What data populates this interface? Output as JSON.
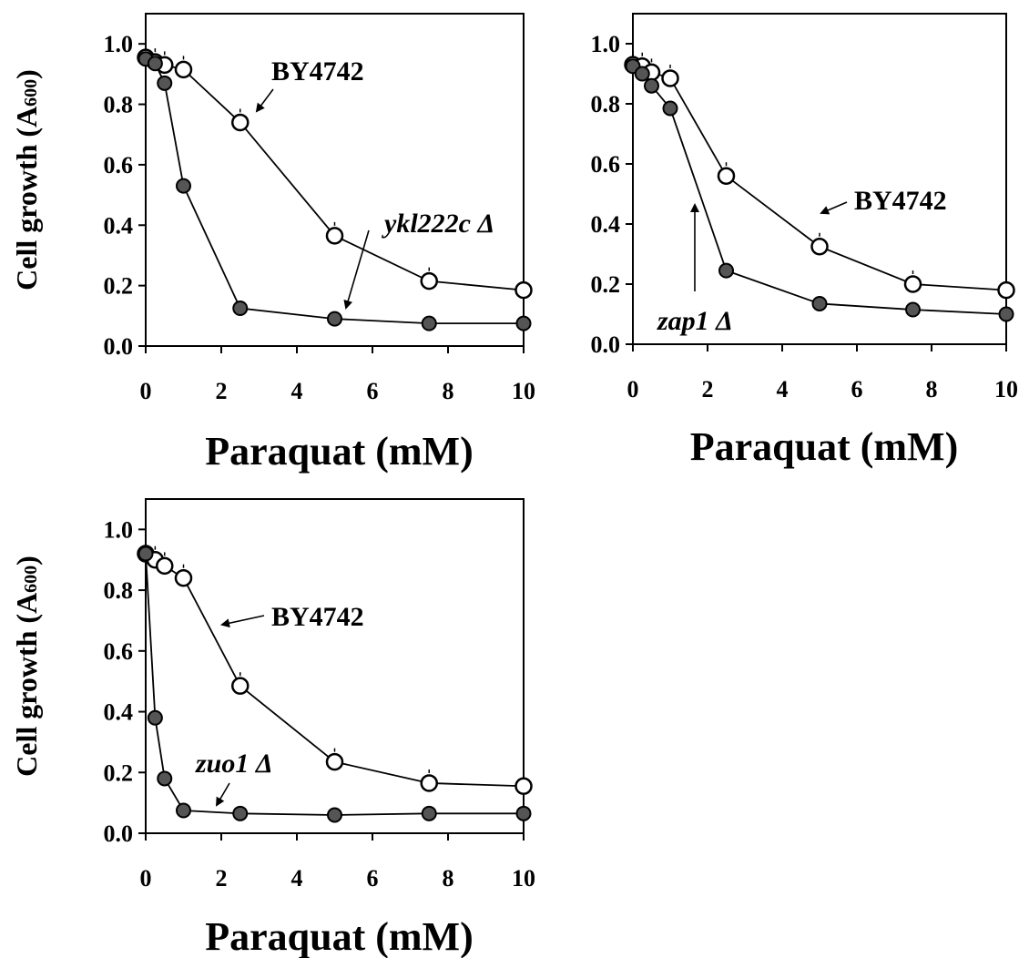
{
  "chart_data": [
    {
      "type": "line",
      "panel": "top-left",
      "xlabel": "Paraquat (mM)",
      "ylabel": "Cell growth (A",
      "ylabel_sub": "600",
      "ylabel_close": ")",
      "xlim": [
        0,
        10
      ],
      "ylim": [
        0,
        1.1
      ],
      "xticks": [
        0,
        2,
        4,
        6,
        8,
        10
      ],
      "yticks": [
        "0.0",
        "0.2",
        "0.4",
        "0.6",
        "0.8",
        "1.0"
      ],
      "series": [
        {
          "name": "BY4742",
          "style": "open",
          "x": [
            0,
            0.25,
            0.5,
            1,
            2.5,
            5,
            7.5,
            10
          ],
          "y": [
            0.955,
            0.94,
            0.93,
            0.915,
            0.74,
            0.365,
            0.215,
            0.185
          ]
        },
        {
          "name": "ykl222c Δ",
          "style": "filled",
          "x": [
            0,
            0.25,
            0.5,
            1,
            2.5,
            5,
            7.5,
            10
          ],
          "y": [
            0.95,
            0.935,
            0.87,
            0.53,
            0.125,
            0.09,
            0.075,
            0.075
          ]
        }
      ],
      "annotations": [
        {
          "text": "BY4742",
          "italic": false
        },
        {
          "text": "ykl222c Δ",
          "italic": true
        }
      ]
    },
    {
      "type": "line",
      "panel": "top-right",
      "xlabel": "Paraquat (mM)",
      "ylabel": "",
      "xlim": [
        0,
        10
      ],
      "ylim": [
        0,
        1.1
      ],
      "xticks": [
        0,
        2,
        4,
        6,
        8,
        10
      ],
      "yticks": [
        "0.0",
        "0.2",
        "0.4",
        "0.6",
        "0.8",
        "1.0"
      ],
      "series": [
        {
          "name": "BY4742",
          "style": "open",
          "x": [
            0,
            0.25,
            0.5,
            1,
            2.5,
            5,
            7.5,
            10
          ],
          "y": [
            0.93,
            0.925,
            0.905,
            0.885,
            0.56,
            0.325,
            0.2,
            0.18
          ]
        },
        {
          "name": "zap1 Δ",
          "style": "filled",
          "x": [
            0,
            0.25,
            0.5,
            1,
            2.5,
            5,
            7.5,
            10
          ],
          "y": [
            0.925,
            0.9,
            0.86,
            0.785,
            0.245,
            0.135,
            0.115,
            0.1
          ]
        }
      ],
      "annotations": [
        {
          "text": "BY4742",
          "italic": false
        },
        {
          "text": "zap1 Δ",
          "italic": true
        }
      ]
    },
    {
      "type": "line",
      "panel": "bottom-left",
      "xlabel": "Paraquat (mM)",
      "ylabel": "Cell growth (A",
      "ylabel_sub": "600",
      "ylabel_close": ")",
      "xlim": [
        0,
        10
      ],
      "ylim": [
        0,
        1.1
      ],
      "xticks": [
        0,
        2,
        4,
        6,
        8,
        10
      ],
      "yticks": [
        "0.0",
        "0.2",
        "0.4",
        "0.6",
        "0.8",
        "1.0"
      ],
      "series": [
        {
          "name": "BY4742",
          "style": "open",
          "x": [
            0,
            0.25,
            0.5,
            1,
            2.5,
            5,
            7.5,
            10
          ],
          "y": [
            0.92,
            0.9,
            0.88,
            0.84,
            0.485,
            0.235,
            0.165,
            0.155
          ]
        },
        {
          "name": "zuo1 Δ",
          "style": "filled",
          "x": [
            0,
            0.25,
            0.5,
            1,
            2.5,
            5,
            7.5,
            10
          ],
          "y": [
            0.92,
            0.38,
            0.18,
            0.075,
            0.065,
            0.06,
            0.065,
            0.065
          ]
        }
      ],
      "annotations": [
        {
          "text": "BY4742",
          "italic": false
        },
        {
          "text": "zuo1 Δ",
          "italic": true
        }
      ]
    }
  ]
}
